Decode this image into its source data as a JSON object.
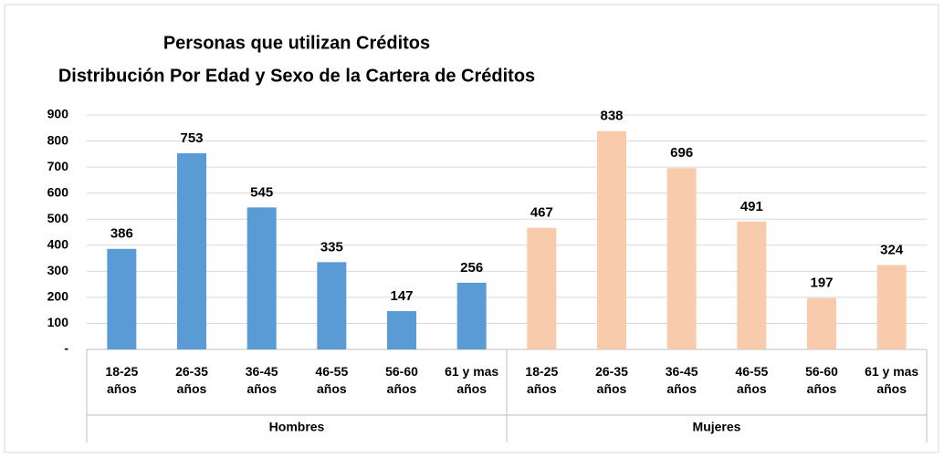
{
  "chart_data": {
    "type": "bar",
    "title": "Personas que utilizan Créditos",
    "subtitle": "Distribución Por Edad y Sexo de la Cartera de Créditos",
    "categories": [
      "18-25 años",
      "26-35 años",
      "36-45 años",
      "46-55 años",
      "56-60 años",
      "61 y mas años"
    ],
    "series": [
      {
        "name": "Hombres",
        "color": "#5b9bd5",
        "values": [
          386,
          753,
          545,
          335,
          147,
          256
        ]
      },
      {
        "name": "Mujeres",
        "color": "#f8cbad",
        "values": [
          467,
          838,
          696,
          491,
          197,
          324
        ]
      }
    ],
    "ylim": [
      0,
      900
    ],
    "yticks": [
      {
        "value": 0,
        "label": "-"
      },
      100,
      200,
      300,
      400,
      500,
      600,
      700,
      800,
      900
    ],
    "grid": true
  }
}
